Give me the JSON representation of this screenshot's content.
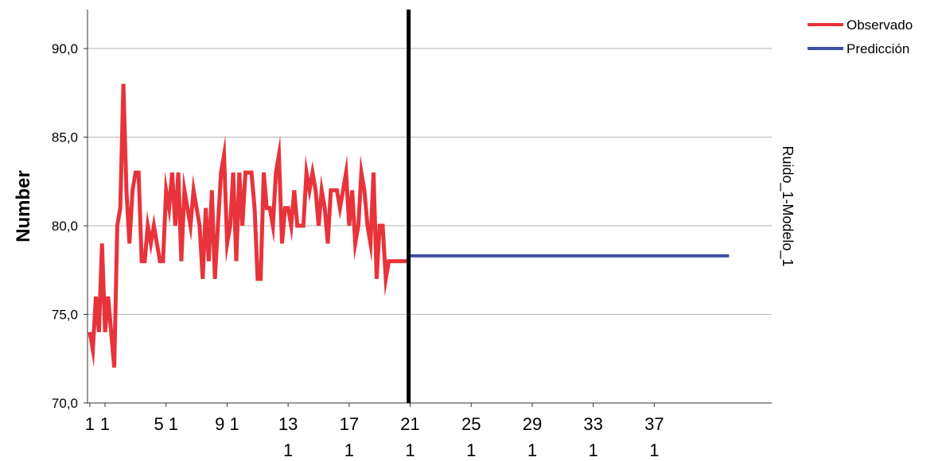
{
  "chart_data": {
    "type": "line",
    "ylabel": "Number",
    "panel_label": "Ruido_1-Modelo_1",
    "ylim": [
      70,
      92.2
    ],
    "yticks": [
      70,
      75,
      80,
      85,
      90
    ],
    "ytick_labels": [
      "70,0",
      "75,0",
      "80,0",
      "85,0",
      "90,0"
    ],
    "xlim": [
      -0.5,
      448
    ],
    "xticks": [
      {
        "x": 1,
        "lines": [
          "1"
        ]
      },
      {
        "x": 11,
        "lines": [
          "1"
        ]
      },
      {
        "x": 51,
        "lines": [
          "5 1"
        ]
      },
      {
        "x": 91,
        "lines": [
          "9 1"
        ]
      },
      {
        "x": 131,
        "lines": [
          "13",
          "1"
        ]
      },
      {
        "x": 171,
        "lines": [
          "17",
          "1"
        ]
      },
      {
        "x": 211,
        "lines": [
          "21",
          "1"
        ]
      },
      {
        "x": 251,
        "lines": [
          "25",
          "1"
        ]
      },
      {
        "x": 291,
        "lines": [
          "29",
          "1"
        ]
      },
      {
        "x": 331,
        "lines": [
          "33",
          "1"
        ]
      },
      {
        "x": 371,
        "lines": [
          "37",
          "1"
        ]
      }
    ],
    "divider_x": 210,
    "grid": "horizontal",
    "legend_position": "top-right",
    "series": [
      {
        "name": "Observado",
        "color": "#e8333b",
        "x": [
          1,
          3,
          5,
          7,
          9,
          11,
          13,
          15,
          17,
          19,
          21,
          23,
          25,
          27,
          29,
          31,
          33,
          35,
          37,
          39,
          41,
          43,
          45,
          47,
          49,
          51,
          53,
          55,
          57,
          59,
          61,
          63,
          65,
          67,
          69,
          71,
          73,
          75,
          77,
          79,
          81,
          83,
          85,
          87,
          89,
          91,
          93,
          95,
          97,
          99,
          101,
          103,
          105,
          107,
          109,
          111,
          113,
          115,
          117,
          119,
          121,
          123,
          125,
          127,
          129,
          131,
          133,
          135,
          137,
          139,
          141,
          143,
          145,
          147,
          149,
          151,
          153,
          155,
          157,
          159,
          161,
          163,
          165,
          167,
          169,
          171,
          173,
          175,
          177,
          179,
          181,
          183,
          185,
          187,
          189,
          191,
          193,
          195,
          197,
          199,
          201,
          203,
          205,
          207,
          209
        ],
        "values": [
          74,
          73,
          76,
          74,
          79,
          74,
          76,
          74,
          72,
          80,
          81,
          88,
          82,
          79,
          82,
          83,
          83,
          78,
          78,
          80,
          79,
          80,
          79,
          78,
          78,
          82,
          81,
          83,
          80,
          83,
          78,
          82,
          81,
          80,
          82,
          81,
          80,
          77,
          81,
          78,
          82,
          77,
          80,
          83,
          84,
          79,
          80,
          83,
          78,
          83,
          80,
          83,
          83,
          83,
          81,
          77,
          77,
          83,
          81,
          81,
          80,
          83,
          84,
          79,
          81,
          81,
          80,
          82,
          80,
          80,
          80,
          83,
          82,
          83,
          82,
          80,
          82,
          81,
          79,
          82,
          82,
          82,
          81,
          82,
          83,
          80,
          82,
          79,
          80,
          83,
          82,
          80,
          79,
          83,
          77,
          80,
          80,
          77,
          78,
          78,
          78,
          78,
          78,
          78,
          78
        ]
      },
      {
        "name": "Predicción",
        "color": "#3f4fa3",
        "x": [
          211,
          420
        ],
        "values": [
          78.3,
          78.3
        ]
      }
    ]
  }
}
